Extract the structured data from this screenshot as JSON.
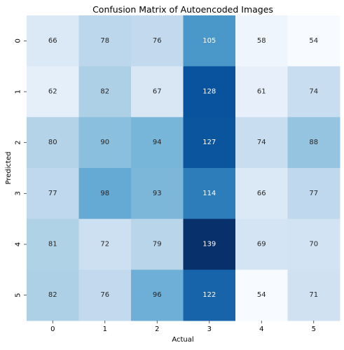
{
  "chart_data": {
    "type": "heatmap",
    "title": "Confusion Matrix of Autoencoded Images",
    "xlabel": "Actual",
    "ylabel": "Predicted",
    "x_categories": [
      "0",
      "1",
      "2",
      "3",
      "4",
      "5"
    ],
    "y_categories": [
      "0",
      "1",
      "2",
      "3",
      "4",
      "5"
    ],
    "values": [
      [
        66,
        78,
        76,
        105,
        58,
        54
      ],
      [
        62,
        82,
        67,
        128,
        61,
        74
      ],
      [
        80,
        90,
        94,
        127,
        74,
        88
      ],
      [
        77,
        98,
        93,
        114,
        66,
        77
      ],
      [
        81,
        72,
        79,
        139,
        69,
        70
      ],
      [
        82,
        76,
        96,
        122,
        54,
        71
      ]
    ],
    "colormap": "Blues",
    "value_range": [
      54,
      139
    ],
    "colorbar": false,
    "grid": false,
    "legend": "none"
  }
}
